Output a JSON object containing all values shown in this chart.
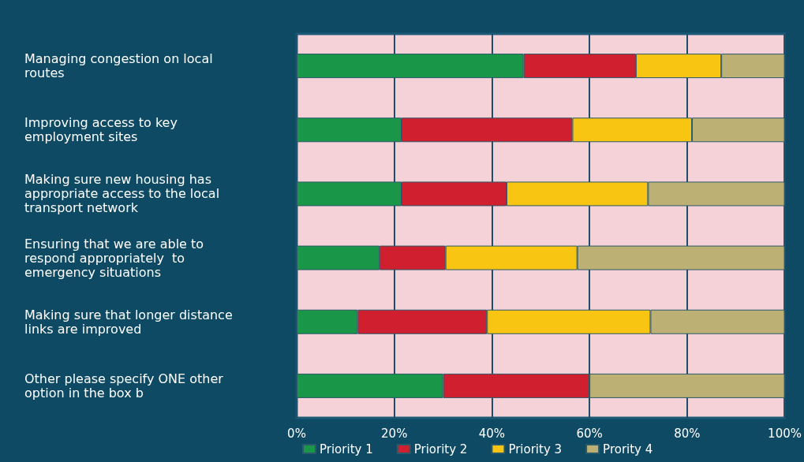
{
  "chart_data": {
    "type": "bar",
    "orientation": "horizontal",
    "stacked": true,
    "categories": [
      "Managing congestion on local routes",
      "Improving access to key employment sites",
      "Making sure new housing has appropriate access to the local transport network",
      "Ensuring that we are able to respond appropriately  to emergency situations",
      "Making sure that longer distance links are improved",
      "Other please specify ONE other option in the box b"
    ],
    "series": [
      {
        "name": "Priority 1",
        "color": "#1a9648",
        "values": [
          46.5,
          21.5,
          21.5,
          17,
          12.5,
          30
        ]
      },
      {
        "name": "Priority 2",
        "color": "#d01f2e",
        "values": [
          23,
          35,
          21.5,
          13.5,
          26.5,
          30
        ]
      },
      {
        "name": "Priority 3",
        "color": "#f8c513",
        "values": [
          17.5,
          24.5,
          29,
          27,
          33.5,
          null
        ]
      },
      {
        "name": "Prority 4",
        "color": "#bdb074",
        "values": [
          13,
          19,
          28,
          42.5,
          27.5,
          40
        ]
      }
    ],
    "xlim": [
      0,
      100
    ],
    "xticks": [
      {
        "value": 0,
        "label": "0%"
      },
      {
        "value": 20,
        "label": "20%"
      },
      {
        "value": 40,
        "label": "40%"
      },
      {
        "value": 60,
        "label": "60%"
      },
      {
        "value": 80,
        "label": "80%"
      },
      {
        "value": 100,
        "label": "100%"
      }
    ],
    "grid": "x",
    "legend": "bottom"
  }
}
